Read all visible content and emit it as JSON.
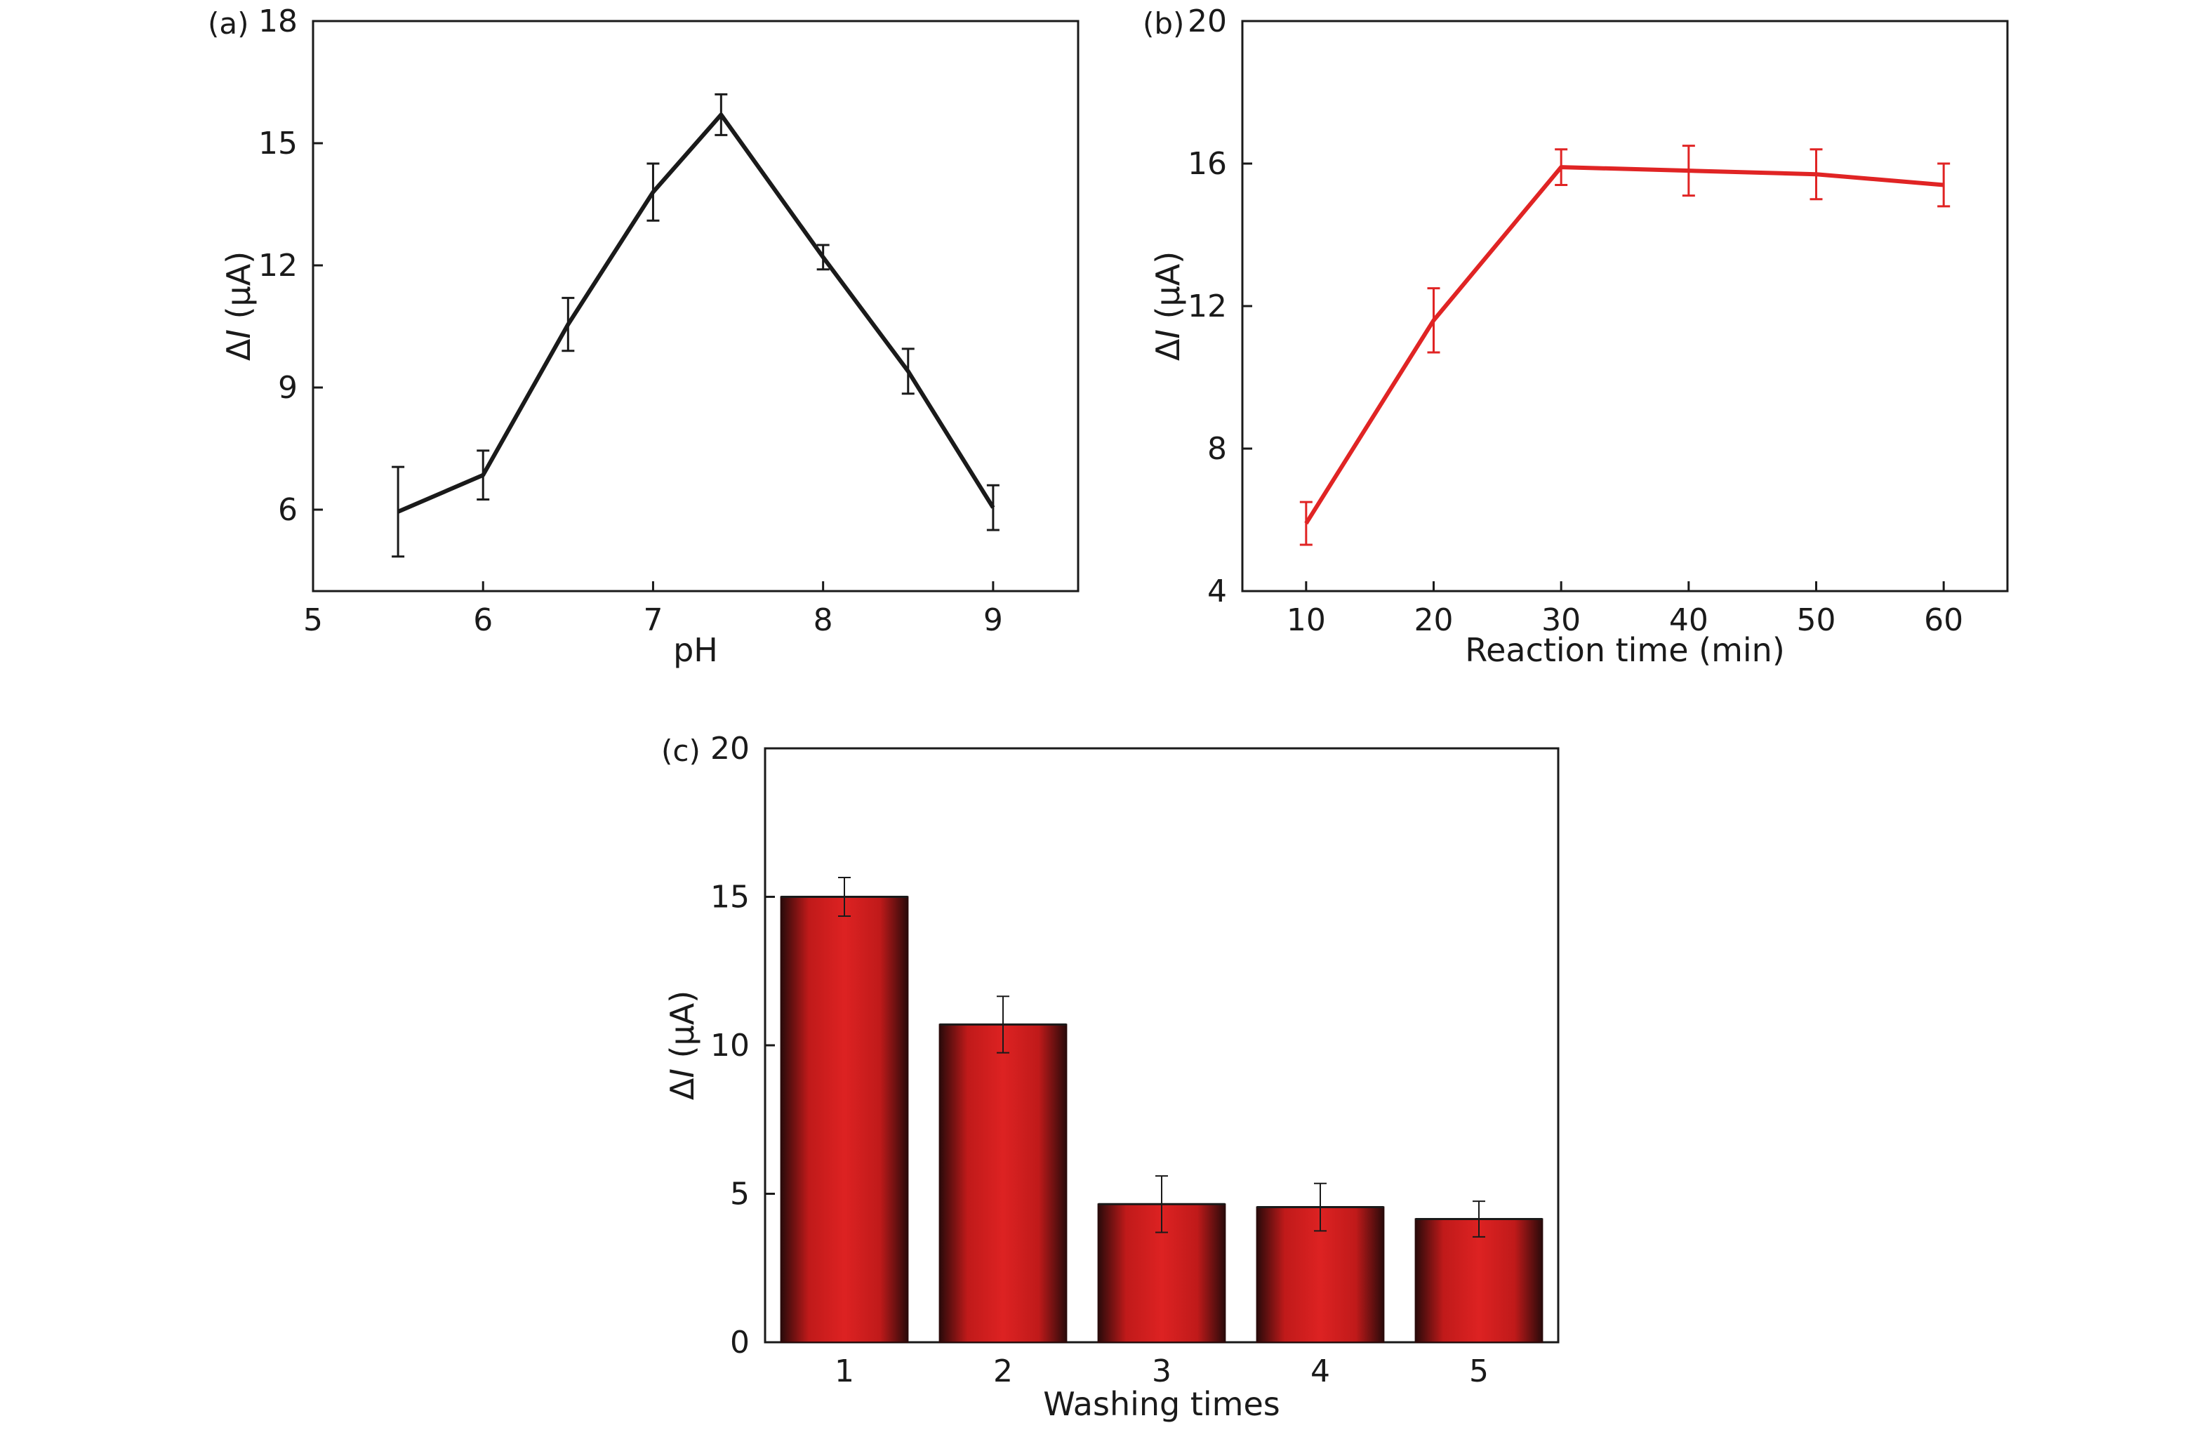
{
  "chart_data": [
    {
      "type": "line",
      "panel_label": "(a)",
      "xlabel": "pH",
      "ylabel": "ΔI (μA)",
      "ylabel_prefix": "Δ",
      "ylabel_italic": "I",
      "ylabel_suffix": " (μA)",
      "xlim": [
        5,
        9.5
      ],
      "ylim": [
        4,
        18
      ],
      "xticks": [
        5,
        6,
        7,
        8,
        9
      ],
      "yticks": [
        6,
        9,
        12,
        15,
        18
      ],
      "color": "#1a1a1a",
      "series": [
        {
          "x": [
            5.5,
            6.0,
            6.5,
            7.0,
            7.4,
            8.0,
            8.5,
            9.0
          ],
          "y": [
            5.95,
            6.85,
            10.55,
            13.8,
            15.7,
            12.2,
            9.4,
            6.05
          ],
          "error": [
            1.1,
            0.6,
            0.65,
            0.7,
            0.5,
            0.3,
            0.55,
            0.55
          ]
        }
      ]
    },
    {
      "type": "line",
      "panel_label": "(b)",
      "xlabel": "Reaction time (min)",
      "ylabel": "ΔI (μA)",
      "ylabel_prefix": "Δ",
      "ylabel_italic": "I",
      "ylabel_suffix": " (μA)",
      "xlim": [
        5,
        65
      ],
      "ylim": [
        4,
        20
      ],
      "xticks": [
        10,
        20,
        30,
        40,
        50,
        60
      ],
      "yticks": [
        4,
        8,
        12,
        16,
        20
      ],
      "color": "#e02424",
      "series": [
        {
          "x": [
            10,
            20,
            30,
            40,
            50,
            60
          ],
          "y": [
            5.9,
            11.6,
            15.9,
            15.8,
            15.7,
            15.4
          ],
          "error": [
            0.6,
            0.9,
            0.5,
            0.7,
            0.7,
            0.6
          ]
        }
      ]
    },
    {
      "type": "bar",
      "panel_label": "(c)",
      "xlabel": "Washing times",
      "ylabel": "ΔI (μA)",
      "ylabel_prefix": "Δ",
      "ylabel_italic": "I",
      "ylabel_suffix": " (μA)",
      "categories": [
        "1",
        "2",
        "3",
        "4",
        "5"
      ],
      "values": [
        15.0,
        10.7,
        4.65,
        4.55,
        4.15
      ],
      "error": [
        0.65,
        0.95,
        0.95,
        0.8,
        0.6
      ],
      "ylim": [
        0,
        20
      ],
      "yticks": [
        0,
        5,
        10,
        15,
        20
      ],
      "bar_color": "#dd2222",
      "bar_edge_color": "#2a0a0a"
    }
  ]
}
